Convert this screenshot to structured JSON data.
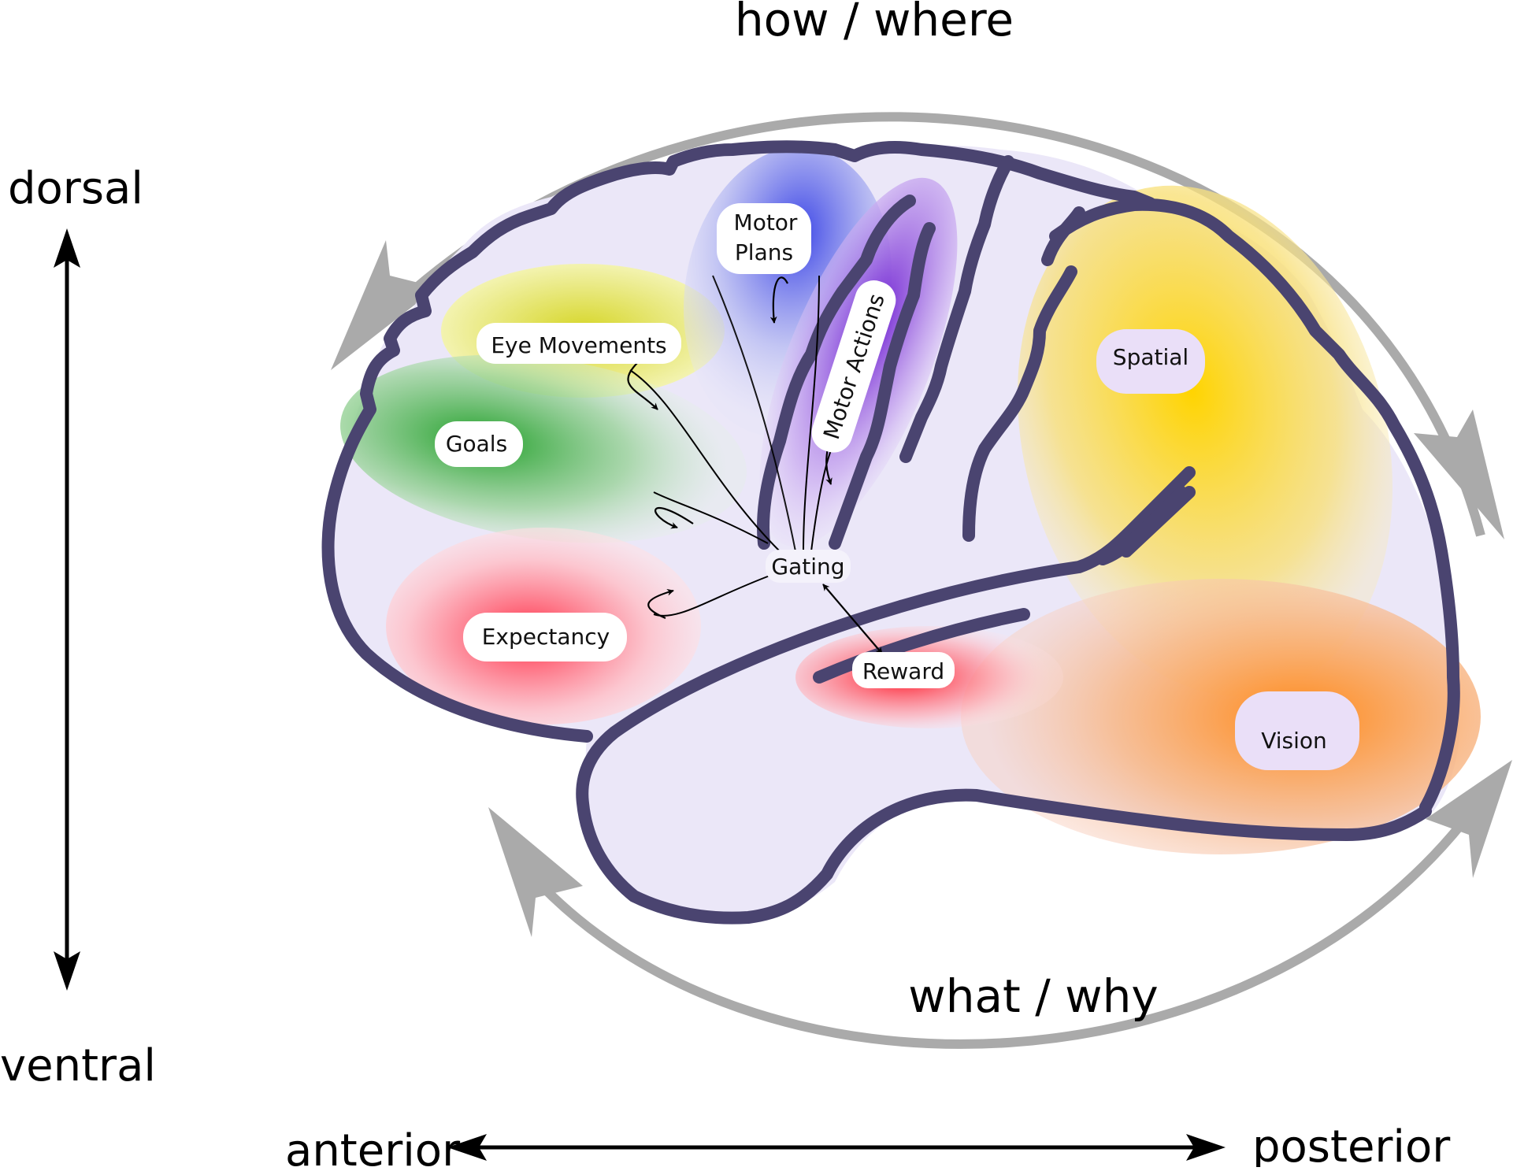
{
  "axes": {
    "dorsal": "dorsal",
    "ventral": "ventral",
    "anterior": "anterior",
    "posterior": "posterior"
  },
  "streams": {
    "dorsal_stream": "how / where",
    "ventral_stream": "what / why"
  },
  "regions": {
    "motor_plans_line1": "Motor",
    "motor_plans_line2": "Plans",
    "motor_actions": "Motor Actions",
    "eye_movements": "Eye Movements",
    "goals": "Goals",
    "spatial": "Spatial",
    "gating": "Gating",
    "expectancy": "Expectancy",
    "reward": "Reward",
    "vision": "Vision"
  },
  "colors": {
    "brain_outline": "#4a4470",
    "brain_fill": "#ece8f8",
    "stream_arrow": "#aaaaaa",
    "eye_movements": "#d4d42a",
    "goals": "#2a9a2a",
    "expectancy": "#ff4050",
    "motor_plans": "#4a50e0",
    "motor_actions": "#7a28d8",
    "spatial": "#ffd000",
    "vision": "#ff8a20",
    "reward": "#ff2030"
  }
}
